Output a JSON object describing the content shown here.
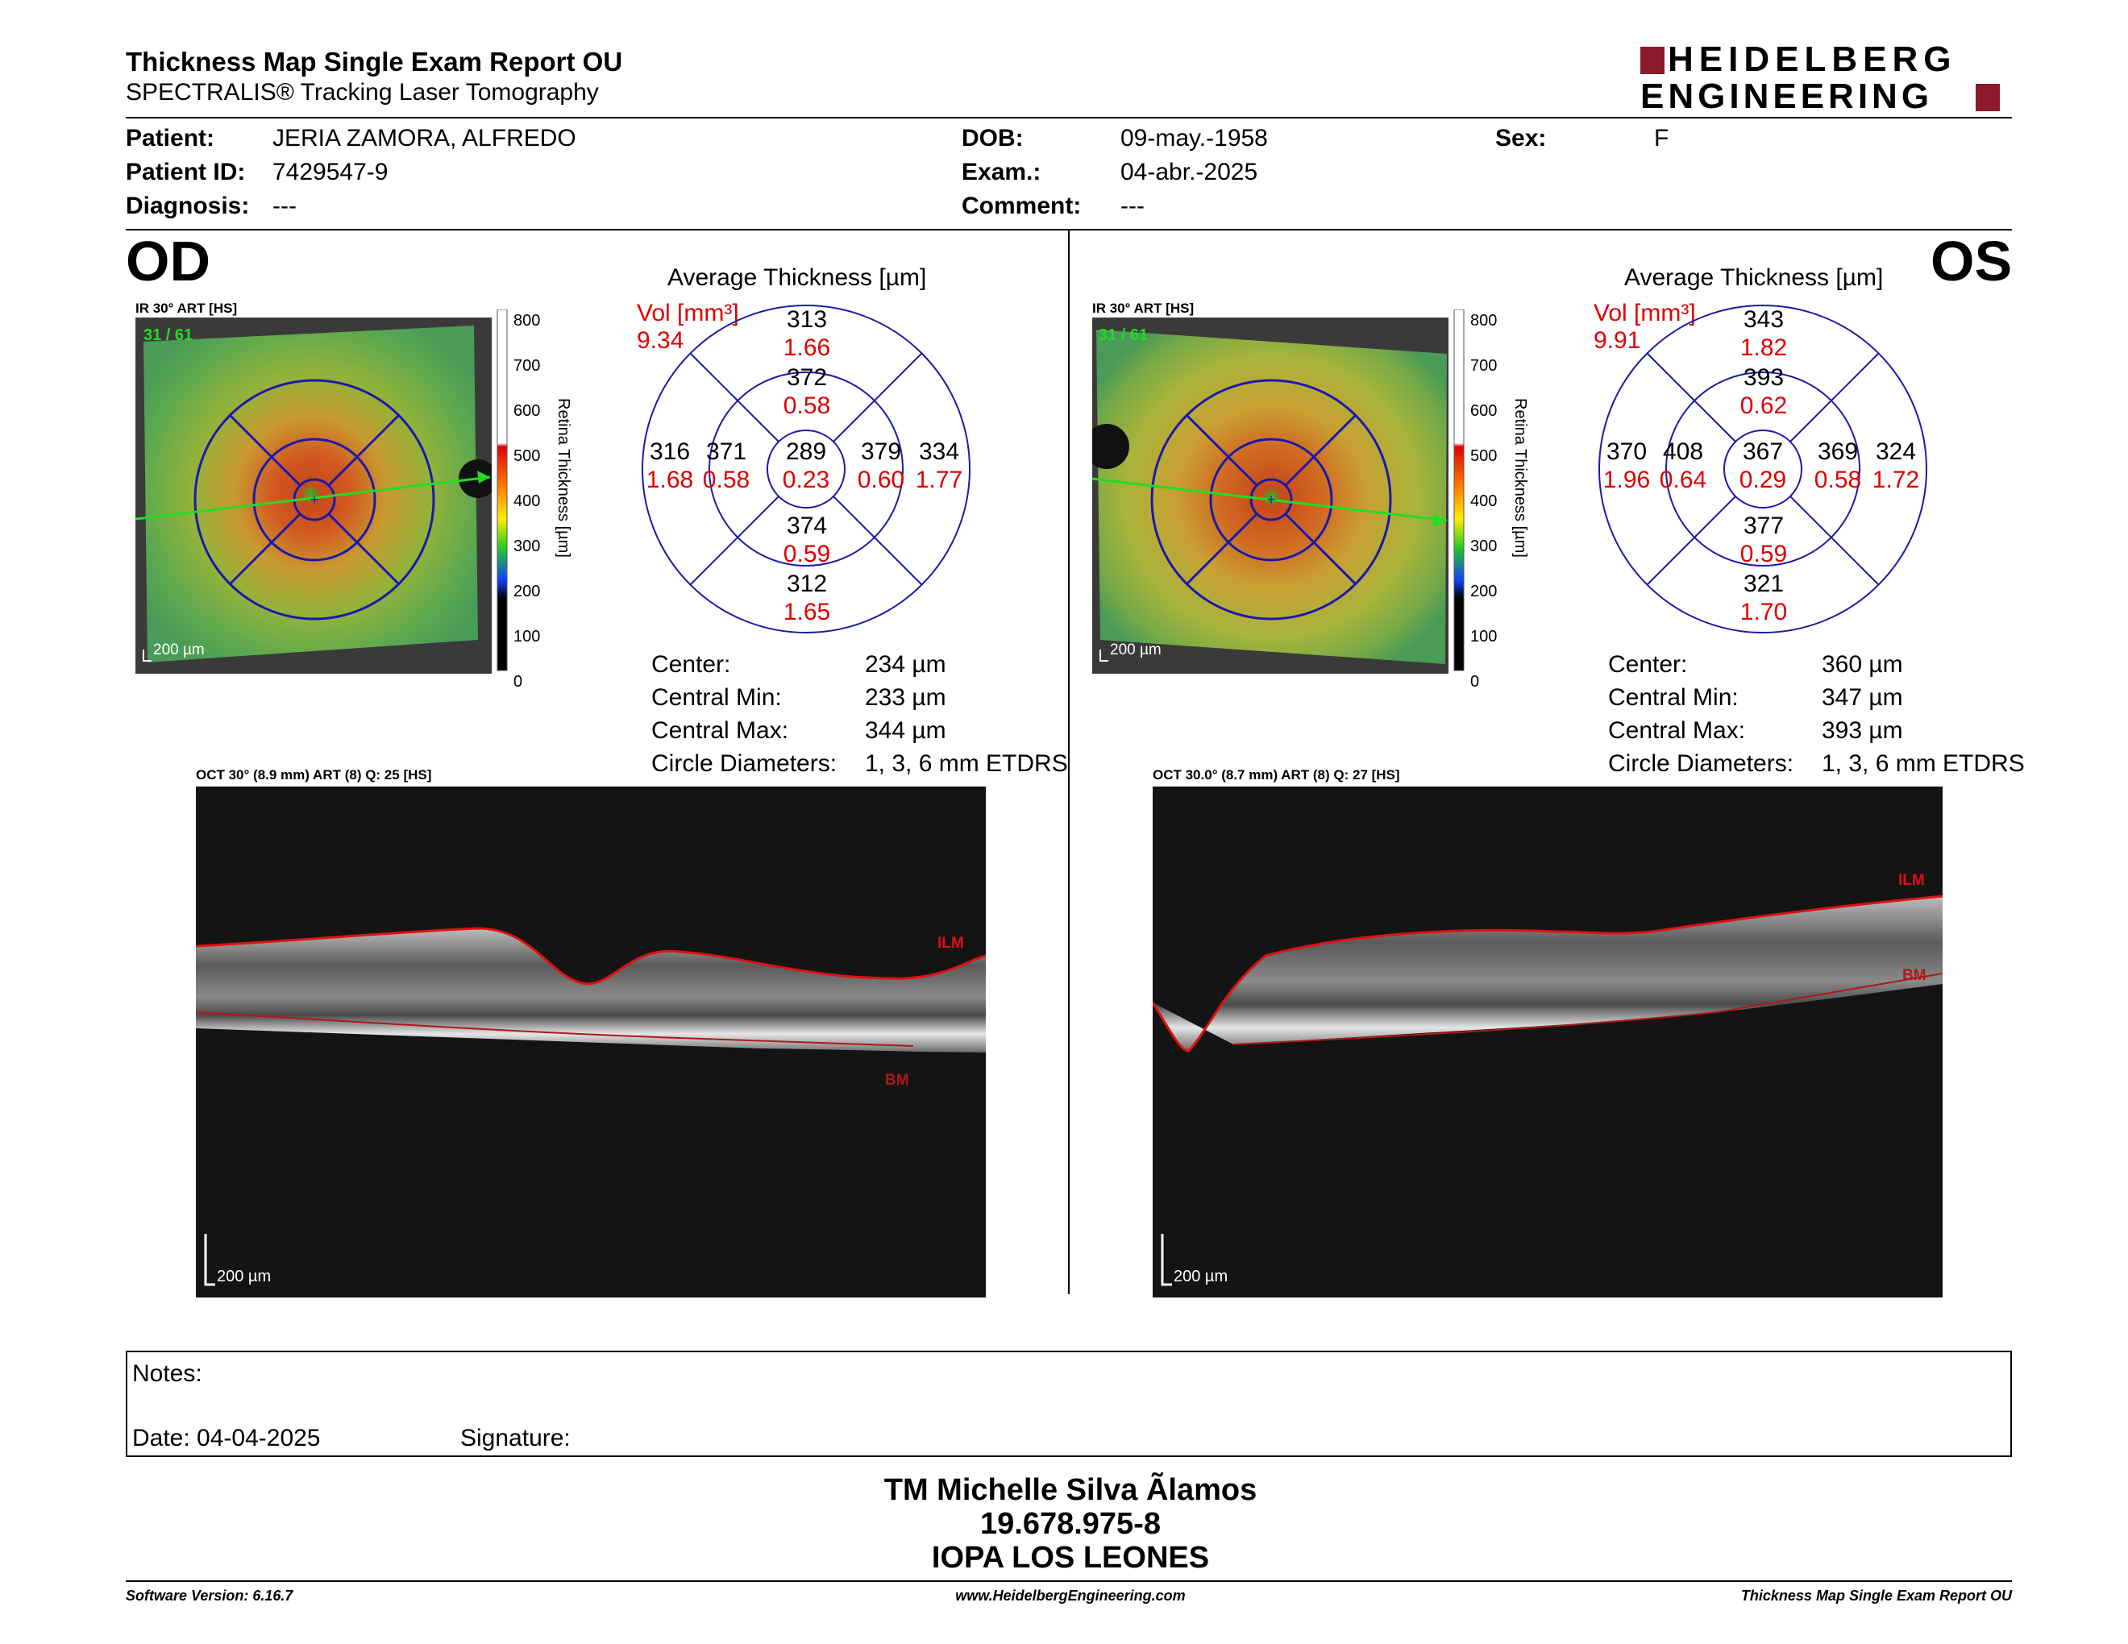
{
  "header": {
    "title": "Thickness Map Single Exam Report OU",
    "subtitle": "SPECTRALIS® Tracking Laser Tomography",
    "logo_line1": "HEIDELBERG",
    "logo_line2": "ENGINEERING"
  },
  "patient": {
    "patient_label": "Patient:",
    "patient_value": "JERIA ZAMORA, ALFREDO",
    "id_label": "Patient ID:",
    "id_value": "7429547-9",
    "diag_label": "Diagnosis:",
    "diag_value": "---",
    "dob_label": "DOB:",
    "dob_value": "09-may.-1958",
    "exam_label": "Exam.:",
    "exam_value": "04-abr.-2025",
    "comment_label": "Comment:",
    "comment_value": "---",
    "sex_label": "Sex:",
    "sex_value": "F"
  },
  "od": {
    "eye": "OD",
    "ir_label": "IR 30° ART [HS]",
    "ir_counter": "31 / 61",
    "scale_label": "200 µm",
    "colorbar_ticks": [
      "800",
      "700",
      "600",
      "500",
      "400",
      "300",
      "200",
      "100",
      "0"
    ],
    "colorbar_title": "Retina  Thickness [µm]",
    "avg_title": "Average Thickness [µm]",
    "vol_label": "Vol [mm³]",
    "vol_value": "9.34",
    "sectors": {
      "outer_top": {
        "t": "313",
        "v": "1.66"
      },
      "inner_top": {
        "t": "372",
        "v": "0.58"
      },
      "outer_left": {
        "t": "316",
        "v": "1.68"
      },
      "inner_left": {
        "t": "371",
        "v": "0.58"
      },
      "center": {
        "t": "289",
        "v": "0.23"
      },
      "inner_right": {
        "t": "379",
        "v": "0.60"
      },
      "outer_right": {
        "t": "334",
        "v": "1.77"
      },
      "inner_bottom": {
        "t": "374",
        "v": "0.59"
      },
      "outer_bottom": {
        "t": "312",
        "v": "1.65"
      }
    },
    "stats": {
      "center_label": "Center:",
      "center_value": "234 µm",
      "min_label": "Central Min:",
      "min_value": "233 µm",
      "max_label": "Central Max:",
      "max_value": "344 µm",
      "circ_label": "Circle Diameters:",
      "circ_value": "1, 3, 6 mm ETDRS"
    },
    "oct_label": "OCT 30° (8.9 mm) ART (8) Q: 25 [HS]",
    "oct_ilm": "ILM",
    "oct_bm": "BM",
    "oct_scale": "200 µm"
  },
  "os": {
    "eye": "OS",
    "ir_label": "IR 30° ART [HS]",
    "ir_counter": "31 / 61",
    "scale_label": "200 µm",
    "colorbar_ticks": [
      "800",
      "700",
      "600",
      "500",
      "400",
      "300",
      "200",
      "100",
      "0"
    ],
    "colorbar_title": "Retina  Thickness [µm]",
    "avg_title": "Average Thickness [µm]",
    "vol_label": "Vol [mm³]",
    "vol_value": "9.91",
    "sectors": {
      "outer_top": {
        "t": "343",
        "v": "1.82"
      },
      "inner_top": {
        "t": "393",
        "v": "0.62"
      },
      "outer_left": {
        "t": "370",
        "v": "1.96"
      },
      "inner_left": {
        "t": "408",
        "v": "0.64"
      },
      "center": {
        "t": "367",
        "v": "0.29"
      },
      "inner_right": {
        "t": "369",
        "v": "0.58"
      },
      "outer_right": {
        "t": "324",
        "v": "1.72"
      },
      "inner_bottom": {
        "t": "377",
        "v": "0.59"
      },
      "outer_bottom": {
        "t": "321",
        "v": "1.70"
      }
    },
    "stats": {
      "center_label": "Center:",
      "center_value": "360 µm",
      "min_label": "Central Min:",
      "min_value": "347 µm",
      "max_label": "Central Max:",
      "max_value": "393 µm",
      "circ_label": "Circle Diameters:",
      "circ_value": "1, 3, 6 mm ETDRS"
    },
    "oct_label": "OCT 30.0° (8.7 mm) ART (8) Q: 27 [HS]",
    "oct_ilm": "ILM",
    "oct_bm": "BM",
    "oct_scale": "200 µm"
  },
  "notes": {
    "notes_label": "Notes:",
    "date_label": "Date: 04-04-2025",
    "signature_label": "Signature:"
  },
  "signatory": {
    "name": "TM Michelle Silva Ãlamos",
    "id": "19.678.975-8",
    "org": "IOPA LOS LEONES"
  },
  "footer": {
    "software": "Software Version: 6.16.7",
    "website": "www.HeidelbergEngineering.com",
    "report": "Thickness Map Single Exam Report OU"
  },
  "colors": {
    "vol_red": "#e00000",
    "grid_blue": "#1a1aa8",
    "brand_red": "#8b1a2b",
    "ilm_red": "#e01010",
    "bm_red": "#b01818",
    "green_label": "#22dd22"
  }
}
